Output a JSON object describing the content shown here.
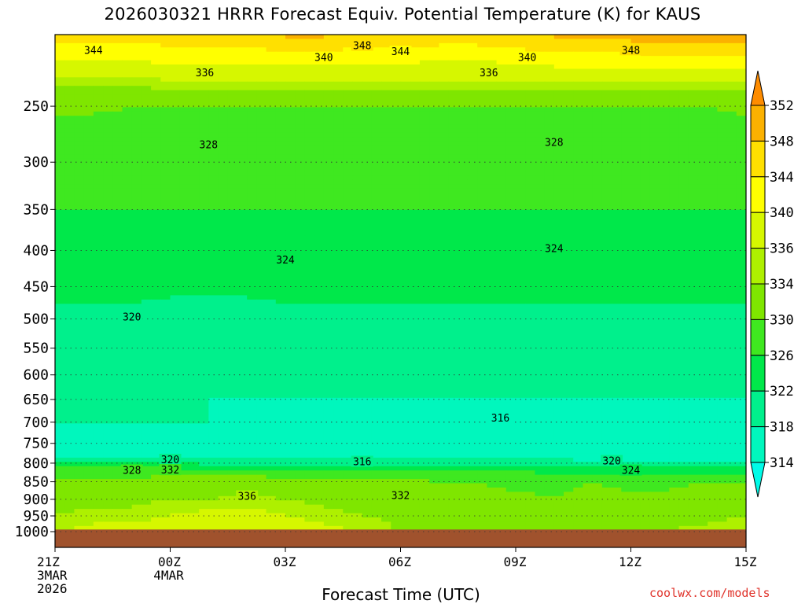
{
  "title": "2026030321 HRRR Forecast Equiv. Potential Temperature (K) for KAUS",
  "credit": "coolwx.com/models",
  "chart_data": {
    "type": "heatmap",
    "title": "2026030321 HRRR Forecast Equiv. Potential Temperature (K) for KAUS",
    "xlabel": "Forecast Time (UTC)",
    "ylabel": "",
    "x_hours": [
      0,
      1,
      2,
      3,
      4,
      5,
      6,
      7,
      8,
      9,
      10,
      11,
      12,
      13,
      14,
      15,
      16,
      17,
      18
    ],
    "x_ticks": [
      {
        "hour": 0,
        "lines": [
          "21Z",
          "3MAR",
          "2026"
        ]
      },
      {
        "hour": 3,
        "lines": [
          "00Z",
          "4MAR"
        ]
      },
      {
        "hour": 6,
        "lines": [
          "03Z"
        ]
      },
      {
        "hour": 9,
        "lines": [
          "06Z"
        ]
      },
      {
        "hour": 12,
        "lines": [
          "09Z"
        ]
      },
      {
        "hour": 15,
        "lines": [
          "12Z"
        ]
      },
      {
        "hour": 18,
        "lines": [
          "15Z"
        ]
      }
    ],
    "pressure_ticks": [
      250,
      300,
      350,
      400,
      450,
      500,
      550,
      600,
      650,
      700,
      750,
      800,
      850,
      900,
      950,
      1000
    ],
    "pressure_range": [
      200,
      1000
    ],
    "pressure_axis": "log",
    "levels_hpa": [
      1000,
      950,
      900,
      850,
      820,
      800,
      780,
      750,
      700,
      650,
      600,
      550,
      500,
      450,
      400,
      350,
      300,
      270,
      250,
      230,
      215,
      200
    ],
    "values": [
      [
        336,
        337,
        338,
        338,
        339,
        339,
        338,
        337,
        336,
        334,
        333,
        333,
        332,
        332,
        333,
        333,
        334,
        335,
        336
      ],
      [
        334,
        335,
        335,
        336,
        337,
        337,
        336,
        335,
        334,
        333,
        332,
        332,
        331,
        331,
        332,
        332,
        333,
        333,
        334
      ],
      [
        333,
        333,
        333,
        334,
        334,
        335,
        334,
        333,
        333,
        332,
        331,
        331,
        331,
        330,
        331,
        331,
        331,
        332,
        332
      ],
      [
        331,
        331,
        331,
        332,
        332,
        332,
        332,
        331,
        331,
        331,
        330,
        330,
        329,
        329,
        330,
        329,
        329,
        330,
        330
      ],
      [
        328,
        328,
        328,
        328,
        328,
        328,
        327,
        327,
        327,
        326,
        326,
        326,
        326,
        325,
        325,
        325,
        325,
        325,
        325
      ],
      [
        322,
        322,
        322,
        322,
        321,
        321,
        320,
        320,
        320,
        320,
        320,
        320,
        320,
        320,
        320,
        320,
        320,
        320,
        320
      ],
      [
        317,
        317,
        317,
        317,
        317,
        317,
        317,
        316,
        316,
        316,
        316,
        316,
        316,
        316,
        315,
        315,
        315,
        314,
        314
      ],
      [
        317,
        317,
        317,
        317,
        317,
        317,
        316,
        316,
        315,
        315,
        315,
        315,
        315,
        314,
        314,
        314,
        314,
        314,
        314
      ],
      [
        318,
        318,
        318,
        318,
        318,
        317,
        317,
        317,
        317,
        316,
        316,
        316,
        316,
        315,
        315,
        316,
        316,
        316,
        316
      ],
      [
        319,
        319,
        319,
        318,
        318,
        318,
        318,
        318,
        318,
        318,
        318,
        318,
        318,
        318,
        318,
        318,
        318,
        318,
        318
      ],
      [
        320,
        320,
        320,
        320,
        320,
        319,
        319,
        319,
        319,
        319,
        319,
        319,
        319,
        319,
        319,
        319,
        319,
        319,
        319
      ],
      [
        321,
        321,
        320,
        320,
        320,
        320,
        320,
        320,
        320,
        320,
        320,
        320,
        320,
        320,
        320,
        320,
        320,
        320,
        320
      ],
      [
        321,
        321,
        321,
        320,
        320,
        320,
        321,
        321,
        321,
        321,
        321,
        321,
        321,
        321,
        321,
        321,
        321,
        321,
        321
      ],
      [
        323,
        323,
        323,
        323,
        323,
        323,
        323,
        323,
        323,
        323,
        323,
        323,
        323,
        323,
        323,
        323,
        323,
        323,
        323
      ],
      [
        325,
        325,
        325,
        325,
        325,
        325,
        325,
        325,
        325,
        325,
        325,
        325,
        325,
        325,
        325,
        325,
        325,
        325,
        324
      ],
      [
        326,
        326,
        326,
        326,
        326,
        326,
        326,
        326,
        326,
        326,
        326,
        326,
        326,
        326,
        326,
        326,
        326,
        326,
        326
      ],
      [
        327,
        327,
        327,
        327,
        327,
        327,
        327,
        327,
        327,
        327,
        327,
        327,
        327,
        327,
        327,
        327,
        327,
        327,
        327
      ],
      [
        328,
        328,
        328,
        328,
        328,
        328,
        328,
        328,
        328,
        328,
        328,
        328,
        328,
        328,
        328,
        328,
        328,
        328,
        329
      ],
      [
        331,
        331,
        330,
        330,
        330,
        330,
        330,
        330,
        330,
        330,
        330,
        330,
        330,
        330,
        330,
        330,
        330,
        330,
        331
      ],
      [
        335,
        335,
        335,
        336,
        336,
        336,
        336,
        336,
        336,
        336,
        336,
        336,
        336,
        336,
        336,
        336,
        336,
        336,
        336
      ],
      [
        340,
        340,
        340,
        341,
        341,
        341,
        341,
        341,
        341,
        341,
        340,
        340,
        341,
        342,
        342,
        342,
        342,
        342,
        342
      ],
      [
        345,
        345,
        345,
        346,
        346,
        347,
        348,
        348,
        347,
        346,
        346,
        346,
        347,
        348,
        349,
        349,
        350,
        350,
        350
      ]
    ],
    "contour_labels": [
      {
        "text": "348",
        "hour": 8.0,
        "p": 205
      },
      {
        "text": "344",
        "hour": 1.0,
        "p": 208
      },
      {
        "text": "344",
        "hour": 9.0,
        "p": 209
      },
      {
        "text": "348",
        "hour": 15.0,
        "p": 208
      },
      {
        "text": "340",
        "hour": 7.0,
        "p": 213
      },
      {
        "text": "340",
        "hour": 12.3,
        "p": 213
      },
      {
        "text": "336",
        "hour": 3.9,
        "p": 224
      },
      {
        "text": "336",
        "hour": 11.3,
        "p": 224
      },
      {
        "text": "328",
        "hour": 4.0,
        "p": 283
      },
      {
        "text": "328",
        "hour": 13.0,
        "p": 281
      },
      {
        "text": "324",
        "hour": 6.0,
        "p": 412
      },
      {
        "text": "324",
        "hour": 13.0,
        "p": 397
      },
      {
        "text": "320",
        "hour": 2.0,
        "p": 496
      },
      {
        "text": "316",
        "hour": 11.6,
        "p": 690
      },
      {
        "text": "316",
        "hour": 8.0,
        "p": 795
      },
      {
        "text": "320",
        "hour": 3.0,
        "p": 790
      },
      {
        "text": "320",
        "hour": 14.5,
        "p": 793
      },
      {
        "text": "328",
        "hour": 2.0,
        "p": 818
      },
      {
        "text": "332",
        "hour": 3.0,
        "p": 817
      },
      {
        "text": "324",
        "hour": 15.0,
        "p": 818
      },
      {
        "text": "336",
        "hour": 5.0,
        "p": 890
      },
      {
        "text": "332",
        "hour": 9.0,
        "p": 888
      }
    ],
    "colorbar": {
      "ticks": [
        352,
        348,
        344,
        340,
        336,
        334,
        330,
        326,
        322,
        318,
        314
      ],
      "colors": [
        "#fe8c00",
        "#fbb100",
        "#ffe000",
        "#ffff00",
        "#d6f700",
        "#aef000",
        "#7fe600",
        "#3fe820",
        "#00e84a",
        "#00f08c",
        "#00f7bd",
        "#00fbe8"
      ]
    },
    "ground_color": "#a0522d",
    "ground_top_hpa": 993,
    "grid": "dotted horizontal at pressure ticks"
  }
}
